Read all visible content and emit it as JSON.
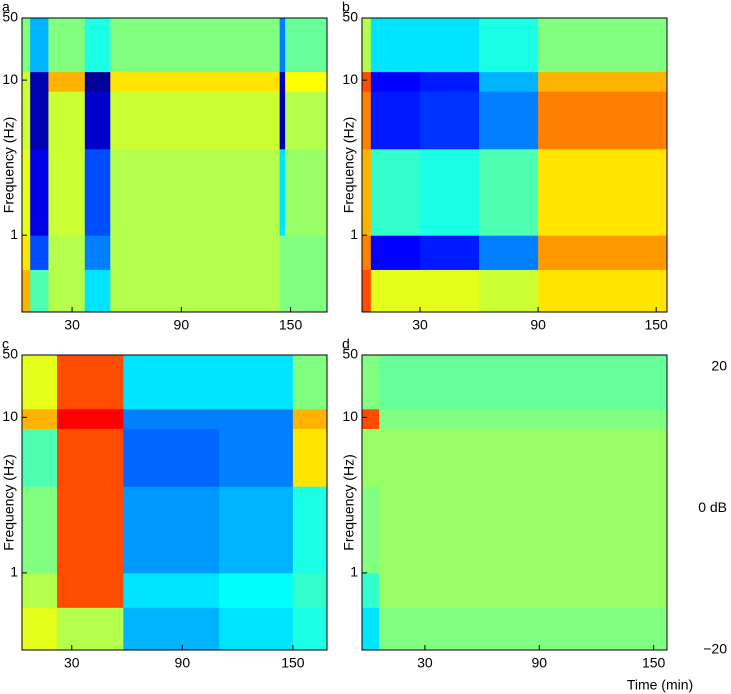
{
  "chart_data": [
    {
      "type": "heatmap",
      "label": "a",
      "ylabel": "Frequency (Hz)",
      "x": [
        2.5,
        7,
        17,
        37,
        51,
        144,
        147,
        170
      ],
      "y": [
        0.47,
        0.7,
        1,
        3,
        8,
        12,
        50
      ],
      "values": [
        [
          8,
          -2,
          2,
          -6,
          2,
          0,
          0
        ],
        [
          6,
          -12,
          2,
          -10,
          2,
          0,
          0
        ],
        [
          4,
          -16,
          3,
          -12,
          2,
          -6,
          1
        ],
        [
          3,
          -18,
          3,
          -17,
          3,
          -18,
          2
        ],
        [
          3,
          -18,
          8,
          -19,
          6,
          -18,
          5
        ],
        [
          0,
          -8,
          0,
          -4,
          0,
          -10,
          -1
        ]
      ],
      "xlim": [
        2.5,
        170
      ],
      "ylim": [
        0.47,
        50
      ],
      "xticks": [
        30,
        90,
        150
      ],
      "yticks": [
        1,
        10,
        50
      ],
      "yscale": "power",
      "yexponent": -0.28
    },
    {
      "type": "heatmap",
      "label": "b",
      "ylabel": "Frequency (Hz)",
      "x": [
        0.5,
        5,
        30,
        60,
        90,
        155.5
      ],
      "y": [
        0.47,
        0.7,
        1,
        3,
        8,
        12,
        50
      ],
      "values": [
        [
          12,
          4,
          4,
          3,
          6
        ],
        [
          10,
          -15,
          -14,
          -10,
          9
        ],
        [
          8,
          -3,
          -4,
          -2,
          6
        ],
        [
          10,
          -14,
          -13,
          -10,
          10
        ],
        [
          12,
          -15,
          -14,
          -8,
          8
        ],
        [
          2,
          -6,
          -6,
          -4,
          0
        ]
      ],
      "xlim": [
        0.5,
        155.5
      ],
      "ylim": [
        0.47,
        50
      ],
      "xticks": [
        30,
        90,
        150
      ],
      "yticks": [
        1,
        10,
        50
      ],
      "yscale": "power",
      "yexponent": -0.28
    },
    {
      "type": "heatmap",
      "label": "c",
      "ylabel": "Frequency (Hz)",
      "x": [
        3,
        22,
        58,
        110,
        150,
        168.5
      ],
      "y": [
        0.47,
        0.7,
        1,
        3,
        8,
        12,
        50
      ],
      "values": [
        [
          4,
          2,
          -8,
          -6,
          -4
        ],
        [
          2,
          12,
          -6,
          -5,
          -3
        ],
        [
          0,
          12,
          -9,
          -8,
          -4
        ],
        [
          -2,
          12,
          -11,
          -10,
          6
        ],
        [
          8,
          15,
          -10,
          -10,
          8
        ],
        [
          4,
          12,
          -6,
          -6,
          0
        ]
      ],
      "xlim": [
        3,
        168.5
      ],
      "ylim": [
        0.47,
        50
      ],
      "xticks": [
        30,
        90,
        150
      ],
      "yticks": [
        1,
        10,
        50
      ],
      "yscale": "power",
      "yexponent": -0.28
    },
    {
      "type": "heatmap",
      "label": "d",
      "ylabel": "Frequency (Hz)",
      "x": [
        -3,
        6,
        157
      ],
      "y": [
        0.47,
        0.7,
        1,
        3,
        8,
        12,
        50
      ],
      "values": [
        [
          -6,
          0
        ],
        [
          -3,
          1
        ],
        [
          0,
          1
        ],
        [
          1,
          1
        ],
        [
          12,
          0
        ],
        [
          0,
          -1
        ]
      ],
      "xlim": [
        -3,
        157
      ],
      "ylim": [
        0.47,
        50
      ],
      "xticks": [
        30,
        90,
        150
      ],
      "yticks": [
        1,
        10,
        50
      ],
      "yscale": "power",
      "yexponent": -0.28
    }
  ],
  "xlabel": "Time (min)",
  "colorbar": {
    "colormap": "jet",
    "lim": [
      -20,
      20
    ],
    "ticks": [
      20,
      {
        "value": 0,
        "label": "0 dB"
      },
      {
        "value": -20,
        "label": "−20"
      }
    ]
  }
}
